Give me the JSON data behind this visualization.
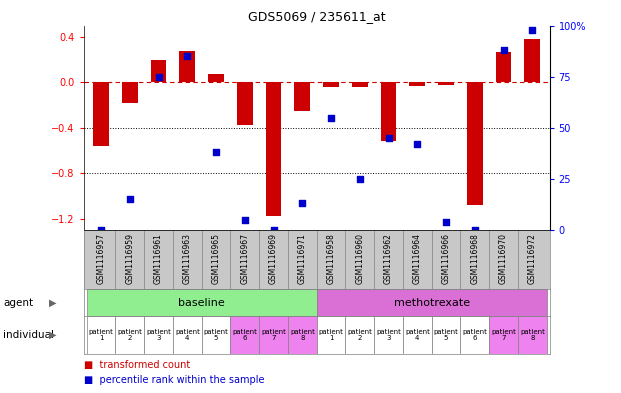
{
  "title": "GDS5069 / 235611_at",
  "samples": [
    "GSM1116957",
    "GSM1116959",
    "GSM1116961",
    "GSM1116963",
    "GSM1116965",
    "GSM1116967",
    "GSM1116969",
    "GSM1116971",
    "GSM1116958",
    "GSM1116960",
    "GSM1116962",
    "GSM1116964",
    "GSM1116966",
    "GSM1116968",
    "GSM1116970",
    "GSM1116972"
  ],
  "transformed_count": [
    -0.56,
    -0.18,
    0.2,
    0.28,
    0.07,
    -0.38,
    -1.18,
    -0.25,
    -0.04,
    -0.04,
    -0.52,
    -0.03,
    -0.02,
    -1.08,
    0.27,
    0.38
  ],
  "percentile_rank": [
    0,
    15,
    75,
    85,
    38,
    5,
    0,
    13,
    55,
    25,
    45,
    42,
    4,
    0,
    88,
    98
  ],
  "agent_groups": [
    {
      "label": "baseline",
      "start": 0,
      "end": 8,
      "color": "#90EE90"
    },
    {
      "label": "methotrexate",
      "start": 8,
      "end": 16,
      "color": "#DA70D6"
    }
  ],
  "individual_labels": [
    "patient\n1",
    "patient\n2",
    "patient\n3",
    "patient\n4",
    "patient\n5",
    "patient\n6",
    "patient\n7",
    "patient\n8",
    "patient\n1",
    "patient\n2",
    "patient\n3",
    "patient\n4",
    "patient\n5",
    "patient\n6",
    "patient\n7",
    "patient\n8"
  ],
  "individual_bg_colors": [
    "#ffffff",
    "#ffffff",
    "#ffffff",
    "#ffffff",
    "#ffffff",
    "#EE82EE",
    "#EE82EE",
    "#EE82EE",
    "#ffffff",
    "#ffffff",
    "#ffffff",
    "#ffffff",
    "#ffffff",
    "#ffffff",
    "#EE82EE",
    "#EE82EE"
  ],
  "bar_color": "#CC0000",
  "dot_color": "#0000CC",
  "ylim_left": [
    -1.3,
    0.5
  ],
  "ylim_right": [
    0,
    100
  ],
  "yticks_left": [
    -1.2,
    -0.8,
    -0.4,
    0.0,
    0.4
  ],
  "yticks_right": [
    0,
    25,
    50,
    75,
    100
  ],
  "hline_y": 0.0,
  "dotted_lines": [
    -0.4,
    -0.8
  ],
  "bg_color": "#ffffff",
  "sample_bg": "#c8c8c8",
  "legend_items": [
    {
      "color": "#CC0000",
      "label": "transformed count"
    },
    {
      "color": "#0000CC",
      "label": "percentile rank within the sample"
    }
  ]
}
